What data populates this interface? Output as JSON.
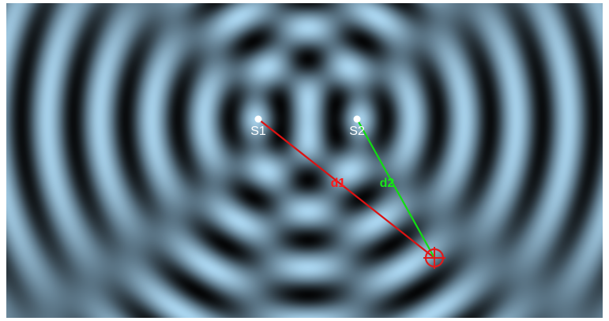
{
  "sources": [
    {
      "id": "S1",
      "label": "S1"
    },
    {
      "id": "S2",
      "label": "S2"
    }
  ],
  "paths": [
    {
      "id": "d1",
      "label": "d1",
      "from": "S1",
      "color": "#dd1111",
      "label_color": "#ff1a1a"
    },
    {
      "id": "d2",
      "label": "d2",
      "from": "S2",
      "color": "#11dd11",
      "label_color": "#19e619"
    }
  ],
  "probe": {
    "icon": "crosshair-target-icon",
    "color": "#e01a1a"
  },
  "field_colors": {
    "crest": "#a9d4ee",
    "mid": "#5a7485",
    "trough": "#050607"
  }
}
